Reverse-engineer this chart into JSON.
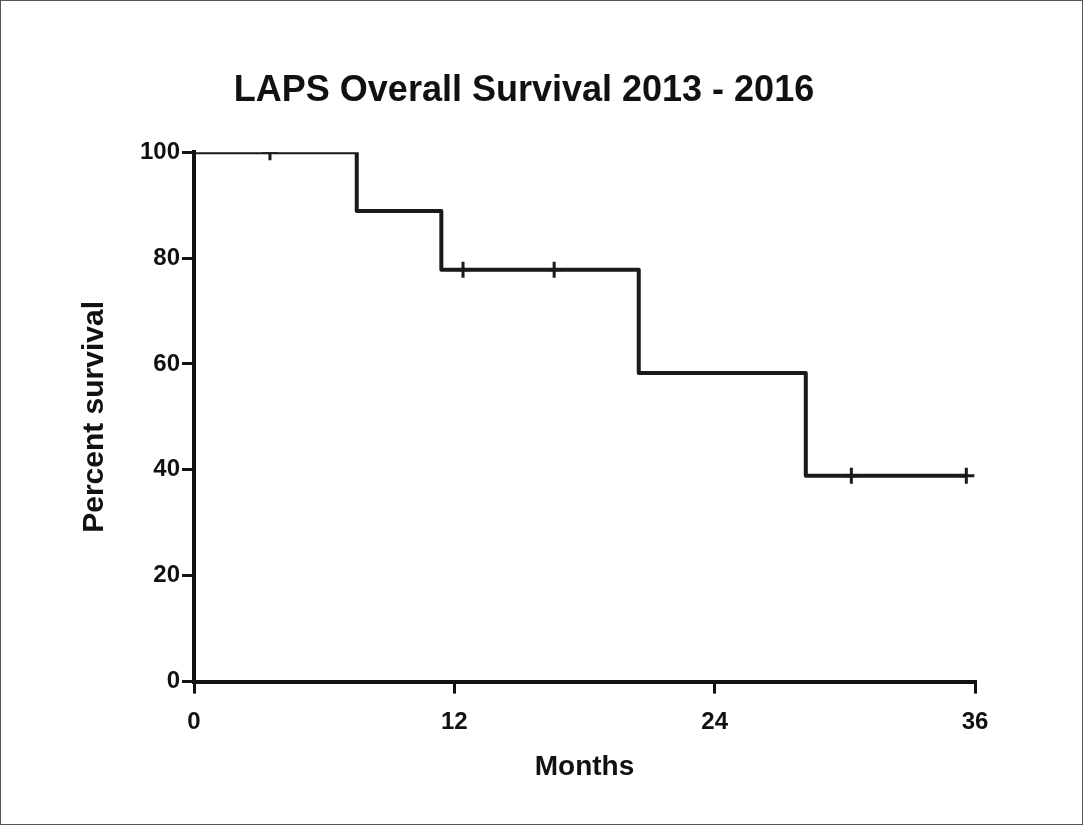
{
  "chart_data": {
    "type": "step",
    "title": "LAPS Overall Survival 2013 - 2016",
    "xlabel": "Months",
    "ylabel": "Percent survival",
    "series": [
      {
        "color": "#1a1a1a",
        "x": [
          0,
          7.5,
          11.4,
          20.5,
          28.2,
          35.6
        ],
        "values": [
          100,
          88.9,
          77.8,
          58.3,
          38.9,
          38.9
        ],
        "marker": "none"
      },
      {
        "type": "scatter",
        "color": "#1a1a1a",
        "x": [
          3.5,
          12.4,
          16.6,
          30.3,
          35.6
        ],
        "values": [
          100,
          77.8,
          77.8,
          38.9,
          38.9
        ],
        "marker": "cross"
      }
    ],
    "xlim": [
      0,
      36
    ],
    "xticks": [
      0,
      12,
      24,
      36
    ],
    "ylim": [
      0,
      100
    ],
    "yticks": [
      0,
      20,
      40,
      60,
      80,
      100
    ],
    "grid": false,
    "legend": false
  }
}
